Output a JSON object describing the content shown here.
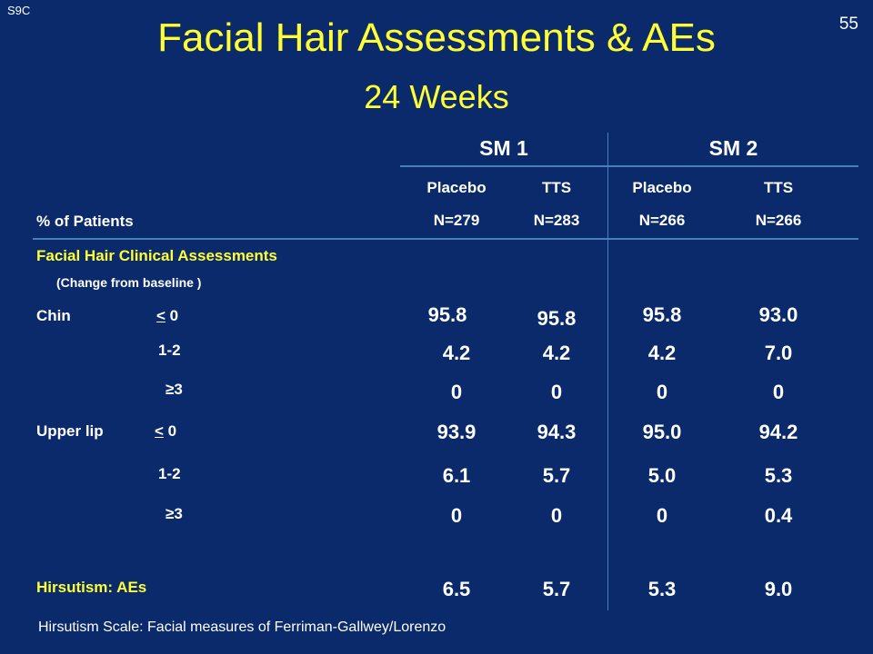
{
  "slide_id": "S9C",
  "page_number": "55",
  "title": "Facial Hair Assessments & AEs",
  "subtitle": "24 Weeks",
  "table": {
    "row_header": "% of Patients",
    "groups": [
      "SM 1",
      "SM 2"
    ],
    "columns": [
      {
        "arm": "Placebo",
        "n": "N=279"
      },
      {
        "arm": "TTS",
        "n": "N=283"
      },
      {
        "arm": "Placebo",
        "n": "N=266"
      },
      {
        "arm": "TTS",
        "n": "N=266"
      }
    ],
    "section_title": "Facial Hair Clinical Assessments",
    "section_note": "(Change from baseline )",
    "chin": {
      "label": "Chin",
      "rows": [
        {
          "cat_sym": "<",
          "cat_num": "0",
          "values": [
            "95.8",
            "95.8",
            "95.8",
            "93.0"
          ]
        },
        {
          "cat": "1-2",
          "values": [
            "4.2",
            "4.2",
            "4.2",
            "7.0"
          ]
        },
        {
          "cat": "≥3",
          "values": [
            "0",
            "0",
            "0",
            "0"
          ]
        }
      ]
    },
    "upper_lip": {
      "label": "Upper lip",
      "rows": [
        {
          "cat_sym": "<",
          "cat_num": "0",
          "values": [
            "93.9",
            "94.3",
            "95.0",
            "94.2"
          ]
        },
        {
          "cat": "1-2",
          "values": [
            "6.1",
            "5.7",
            "5.0",
            "5.3"
          ]
        },
        {
          "cat": "≥3",
          "values": [
            "0",
            "0",
            "0",
            "0.4"
          ]
        }
      ]
    },
    "ae_row": {
      "label": "Hirsutism: AEs",
      "values": [
        "6.5",
        "5.7",
        "5.3",
        "9.0"
      ]
    }
  },
  "footnote": "Hirsutism Scale: Facial measures of  Ferriman-Gallwey/Lorenzo",
  "colors": {
    "background": "#0a2a6b",
    "title": "#ffff33",
    "text": "#ffffff",
    "rule": "#4a7fbf"
  }
}
